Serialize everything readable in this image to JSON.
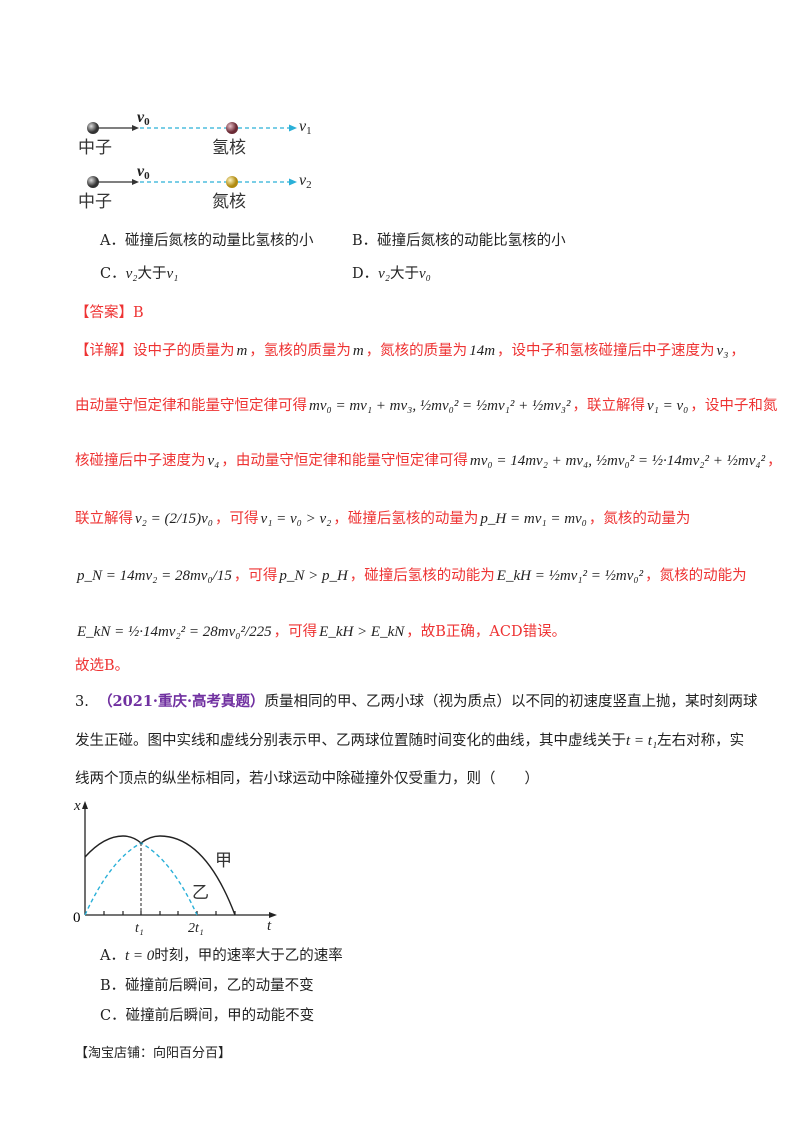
{
  "top_figure": {
    "rows": [
      {
        "particle": "中子",
        "incoming_velocity": "v",
        "incoming_sub": "0",
        "target": "氢核",
        "outgoing_velocity": "v",
        "outgoing_sub": "1"
      },
      {
        "particle": "中子",
        "incoming_velocity": "v",
        "incoming_sub": "0",
        "target": "氮核",
        "outgoing_velocity": "v",
        "outgoing_sub": "2"
      }
    ]
  },
  "q2_options": {
    "A": "A．碰撞后氮核的动量比氢核的小",
    "B": "B．碰撞后氮核的动能比氢核的小",
    "C_prefix": "C．",
    "C_math1": "v₂",
    "C_text": "大于",
    "C_math2": "v₁",
    "D_prefix": "D．",
    "D_math1": "v₂",
    "D_text": "大于",
    "D_math2": "v₀"
  },
  "answer": "【答案】B",
  "explanation": {
    "l1": [
      {
        "t": "【详解】设中子的质量为"
      },
      {
        "m": "m"
      },
      {
        "t": "，氢核的质量为"
      },
      {
        "m": "m"
      },
      {
        "t": "，氮核的质量为"
      },
      {
        "m": "14m"
      },
      {
        "t": "，设中子和氢核碰撞后中子速度为"
      },
      {
        "m": "v₃"
      },
      {
        "t": "，"
      }
    ],
    "l2": [
      {
        "t": "由动量守恒定律和能量守恒定律可得"
      },
      {
        "m": "mv₀ = mv₁ + mv₃, ½mv₀² = ½mv₁² + ½mv₃²"
      },
      {
        "t": "，联立解得"
      },
      {
        "m": "v₁ = v₀"
      },
      {
        "t": "，设中子和氮"
      }
    ],
    "l3": [
      {
        "t": "核碰撞后中子速度为"
      },
      {
        "m": "v₄"
      },
      {
        "t": "，由动量守恒定律和能量守恒定律可得"
      },
      {
        "m": "mv₀ = 14mv₂ + mv₄, ½mv₀² = ½·14mv₂² + ½mv₄²"
      },
      {
        "t": "，"
      }
    ],
    "l4": [
      {
        "t": "联立解得"
      },
      {
        "m": "v₂ = (2/15)v₀"
      },
      {
        "t": "，可得"
      },
      {
        "m": "v₁ = v₀ > v₂"
      },
      {
        "t": "，碰撞后氢核的动量为"
      },
      {
        "m": "p_H = mv₁ = mv₀"
      },
      {
        "t": "，氮核的动量为"
      }
    ],
    "l5": [
      {
        "m": "p_N = 14mv₂ = 28mv₀/15"
      },
      {
        "t": "，可得"
      },
      {
        "m": "p_N > p_H"
      },
      {
        "t": "，碰撞后氢核的动能为"
      },
      {
        "m": "E_kH = ½mv₁² = ½mv₀²"
      },
      {
        "t": "，氮核的动能为"
      }
    ],
    "l6": [
      {
        "m": "E_kN = ½·14mv₂² = 28mv₀²/225"
      },
      {
        "t": "，可得"
      },
      {
        "m": "E_kH > E_kN"
      },
      {
        "t": "，故B正确，ACD错误。"
      }
    ]
  },
  "conclusion": "故选B。",
  "q3": {
    "number": "3.",
    "source": "（2021·重庆·高考真题）",
    "l1": "质量相同的甲、乙两小球（视为质点）以不同的初速度竖直上抛，某时刻两球",
    "l2a": "发生正碰。图中实线和虚线分别表示甲、乙两球位置随时间变化的曲线，其中虚线关于",
    "l2m": "t = t₁",
    "l2b": "左右对称，实",
    "l3": "线两个顶点的纵坐标相同，若小球运动中除碰撞外仅受重力，则（　　）"
  },
  "q3_figure": {
    "y_axis": "x",
    "x_axis": "t",
    "origin": "0",
    "tick_t1": "t₁",
    "tick_2t1": "2t₁",
    "solid_curve_label": "甲",
    "dashed_curve_label": "乙",
    "solid_color": "#222222",
    "dashed_color": "#2ab0d8"
  },
  "q3_options": {
    "A_prefix": "A．",
    "A_math": "t = 0",
    "A_text": "时刻，甲的速率大于乙的速率",
    "B": "B．碰撞前后瞬间，乙的动量不变",
    "C": "C．碰撞前后瞬间，甲的动能不变"
  },
  "footer": "【淘宝店铺：向阳百分百】",
  "colors": {
    "explanation": "#ee3333",
    "source": "#7030a0",
    "dashed_line": "#2ab0d8"
  }
}
